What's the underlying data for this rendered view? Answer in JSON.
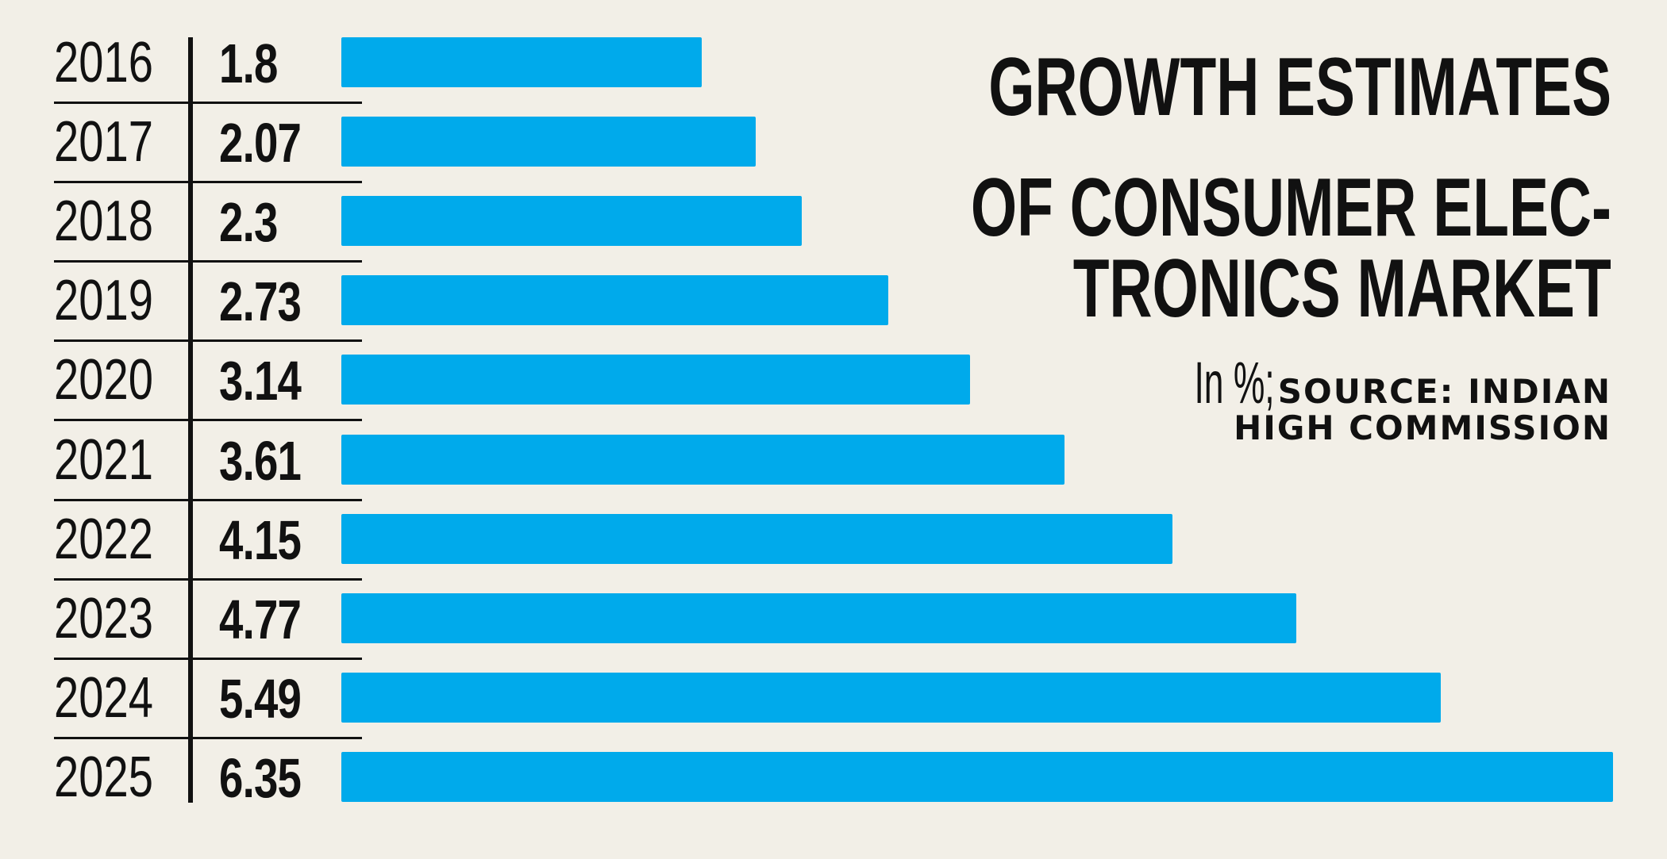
{
  "chart_data": {
    "type": "bar",
    "orientation": "horizontal",
    "title": "GROWTH ESTIMATES OF CONSUMER ELECTRONICS MARKET",
    "title_lines": [
      "GROWTH ESTIMATES",
      "OF CONSUMER ELEC-",
      "TRONICS MARKET"
    ],
    "unit_label": "In %;",
    "source_lines": [
      "SOURCE: INDIAN",
      "HIGH COMMISSION"
    ],
    "categories": [
      "2016",
      "2017",
      "2018",
      "2019",
      "2020",
      "2021",
      "2022",
      "2023",
      "2024",
      "2025"
    ],
    "values": [
      1.8,
      2.07,
      2.3,
      2.73,
      3.14,
      3.61,
      4.15,
      4.77,
      5.49,
      6.35
    ],
    "value_labels": [
      "1.8",
      "2.07",
      "2.3",
      "2.73",
      "3.14",
      "3.61",
      "4.15",
      "4.77",
      "5.49",
      "6.35"
    ],
    "xlabel": "",
    "ylabel": "",
    "xlim": [
      0,
      6.35
    ],
    "grid": false,
    "bar_color": "#00aaeb",
    "background_color": "#f2efe7"
  }
}
